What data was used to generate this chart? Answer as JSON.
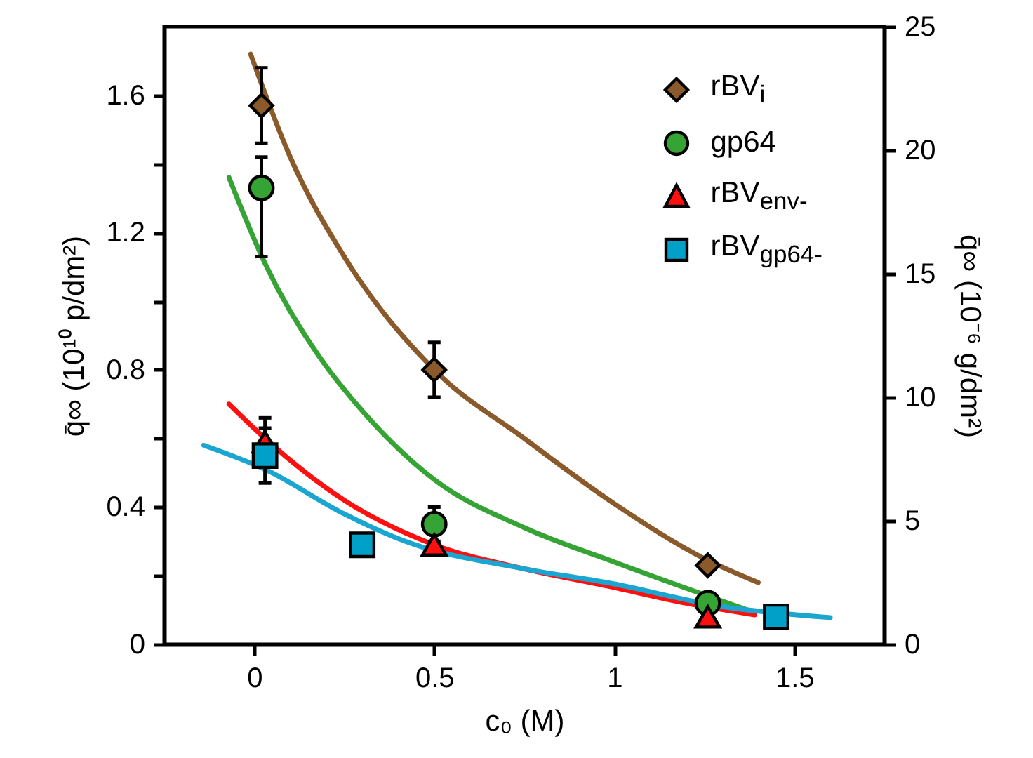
{
  "chart_data": {
    "type": "scatter",
    "xlabel": "c₀ (M)",
    "ylabel": "q̄∞ (10¹⁰ p/dm²)",
    "y2label": "q̄∞ (10⁻⁶ g/dm²)",
    "xlim": [
      -0.25,
      1.75
    ],
    "xticks": [
      {
        "value": 0,
        "label": "0"
      },
      0.5,
      1,
      1.5
    ],
    "ylim": [
      0,
      1.8
    ],
    "yticks": [
      0,
      {
        "value": 0.2,
        "label": null
      },
      0.4,
      {
        "value": 0.6,
        "label": null
      },
      0.8,
      {
        "value": 1.0,
        "label": null
      },
      1.2,
      {
        "value": 1.4,
        "label": null
      },
      1.6
    ],
    "y2lim": [
      0,
      25
    ],
    "y2ticks": [
      0,
      5,
      10,
      15,
      20,
      25
    ],
    "legend": "top right",
    "series": [
      {
        "type": "line",
        "color": "#8b5a2b",
        "x": [
          -0.01,
          0.1,
          0.25,
          0.5,
          0.75,
          1.0,
          1.25,
          1.4
        ],
        "values": [
          1.72,
          1.42,
          1.13,
          0.8,
          0.6,
          0.41,
          0.25,
          0.18
        ]
      },
      {
        "type": "line",
        "color": "#36a335",
        "x": [
          -0.07,
          0.03,
          0.2,
          0.26,
          0.5,
          0.75,
          1.0,
          1.37
        ],
        "values": [
          1.36,
          1.11,
          0.81,
          0.73,
          0.48,
          0.34,
          0.24,
          0.1
        ]
      },
      {
        "type": "line",
        "color": "#ff1010",
        "x": [
          -0.07,
          0.03,
          0.25,
          0.5,
          0.75,
          0.98,
          1.2,
          1.39
        ],
        "values": [
          0.7,
          0.6,
          0.42,
          0.29,
          0.22,
          0.17,
          0.12,
          0.086
        ]
      },
      {
        "type": "line",
        "color": "#1aa6d0",
        "x": [
          -0.14,
          0.03,
          0.25,
          0.42,
          0.75,
          0.98,
          1.3,
          1.6
        ],
        "values": [
          0.58,
          0.51,
          0.38,
          0.3,
          0.22,
          0.18,
          0.11,
          0.078
        ]
      },
      {
        "name": "rBV$_{i}$",
        "color": "#8b5a2b",
        "marker": "diamond",
        "x": [
          0.02,
          0.5,
          1.26
        ],
        "values": [
          1.57,
          0.8,
          0.23
        ],
        "errors": [
          0.11,
          0.08,
          null
        ]
      },
      {
        "name": "gp64",
        "color": "#36a335",
        "marker": "circle",
        "x": [
          0.02,
          0.5,
          1.26
        ],
        "values": [
          1.33,
          0.35,
          0.12
        ],
        "errors": [
          [
            1.13,
            1.42
          ],
          0.05,
          null
        ]
      },
      {
        "name": "rBV$_{env-}$",
        "color": "#ff1010",
        "marker": "triangle",
        "x": [
          0.03,
          0.5,
          1.26
        ],
        "values": [
          0.59,
          0.29,
          0.08
        ],
        "errors": [
          0.07,
          null,
          null
        ]
      },
      {
        "name": "rBV$_{gp64-}$",
        "color": "#00a0c8",
        "marker": "square",
        "x": [
          0.03,
          0.3,
          1.45
        ],
        "values": [
          0.55,
          0.29,
          0.08
        ],
        "errors": [
          0.08,
          null,
          null
        ]
      }
    ]
  }
}
